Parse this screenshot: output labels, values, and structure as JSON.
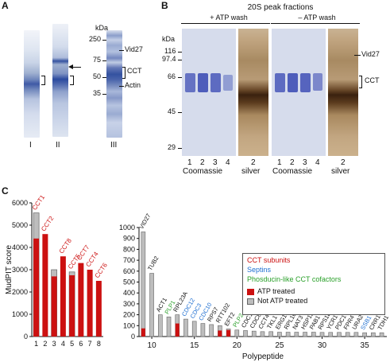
{
  "panel_a": {
    "label": "A",
    "kda_title": "kDa",
    "markers": [
      "250",
      "75",
      "50",
      "35"
    ],
    "lane_labels": [
      "I",
      "II",
      "III"
    ],
    "annotations": {
      "vid27": "Vid27",
      "cct": "CCT",
      "actin": "Actin"
    }
  },
  "panel_b": {
    "label": "B",
    "title": "20S peak fractions",
    "kda_title": "kDa",
    "markers": [
      "116",
      "97.4",
      "66",
      "45",
      "29"
    ],
    "groups": [
      {
        "title": "+ ATP wash",
        "lanes": [
          "1",
          "2",
          "3",
          "4"
        ],
        "stain": "Coomassie",
        "silver_lane": "2",
        "silver_label": "silver"
      },
      {
        "title": "– ATP wash",
        "lanes": [
          "1",
          "2",
          "3",
          "4"
        ],
        "stain": "Coomassie",
        "silver_lane": "2",
        "silver_label": "silver"
      }
    ],
    "annotations": {
      "vid27": "Vid27",
      "cct": "CCT"
    }
  },
  "panel_c": {
    "label": "C"
  },
  "legend": {
    "categories": [
      {
        "text": "CCT subunits",
        "color": "#cc1111"
      },
      {
        "text": "Septins",
        "color": "#1f6fd1"
      },
      {
        "text": "Phosducin-like CCT cofactors",
        "color": "#2aa02a"
      }
    ],
    "series": [
      {
        "text": "ATP treated"
      },
      {
        "text": "Not ATP treated"
      }
    ]
  },
  "chart_data": [
    {
      "type": "bar",
      "ylabel": "MudPIT score",
      "xlabel": "",
      "ylim": [
        0,
        6000
      ],
      "yticks": [
        0,
        1000,
        2000,
        3000,
        4000,
        5000,
        6000
      ],
      "categories": [
        "1",
        "2",
        "3",
        "4",
        "5",
        "6",
        "7",
        "8"
      ],
      "point_labels": [
        "CCT1",
        "CCT2",
        "",
        "CCT8",
        "CCT5",
        "CCT7",
        "CCT4",
        "CCT6"
      ],
      "series": [
        {
          "name": "ATP treated",
          "values": [
            4400,
            4600,
            2700,
            3600,
            2750,
            3300,
            3000,
            2500
          ]
        },
        {
          "name": "Not ATP treated",
          "values": [
            5550,
            0,
            3000,
            0,
            2900,
            0,
            0,
            0
          ]
        }
      ]
    },
    {
      "type": "bar",
      "ylabel": "",
      "xlabel": "Polypeptide",
      "ylim": [
        0,
        1000
      ],
      "yticks": [
        0,
        100,
        200,
        300,
        400,
        500,
        600,
        700,
        800,
        900,
        1000
      ],
      "xticks": [
        10,
        15,
        20,
        25,
        30,
        35
      ],
      "x": [
        9,
        10,
        11,
        12,
        13,
        14,
        15,
        16,
        17,
        18,
        19,
        20,
        21,
        22,
        23,
        24,
        25,
        26,
        27,
        28,
        29,
        30,
        31,
        32,
        33,
        34,
        35,
        36,
        37
      ],
      "point_labels": [
        "VID27",
        "TUB2",
        "ACT1",
        "PLP1",
        "RPL23A",
        "CDC12",
        "CDC3",
        "CDC10",
        "RPS7",
        "RTT102",
        "EFT2",
        "PLP2",
        "CDC11",
        "CDC8",
        "CCT4",
        "TKL1",
        "ERG13",
        "RPL10",
        "NAT3",
        "HSP12",
        "PAB1",
        "RPS1B",
        "YCR1",
        "PDC1",
        "FPR4",
        "URA2",
        "SSB1",
        "CRR1",
        "TDH1"
      ],
      "label_colors": [
        "#111",
        "#111",
        "#111",
        "#2aa02a",
        "#111",
        "#1f6fd1",
        "#1f6fd1",
        "#1f6fd1",
        "#111",
        "#111",
        "#111",
        "#2aa02a",
        "#111",
        "#111",
        "#111",
        "#111",
        "#111",
        "#111",
        "#111",
        "#111",
        "#111",
        "#111",
        "#111",
        "#111",
        "#111",
        "#111",
        "#1f6fd1",
        "#111",
        "#111"
      ],
      "series": [
        {
          "name": "ATP treated",
          "values": [
            75,
            0,
            0,
            0,
            120,
            0,
            0,
            0,
            0,
            55,
            60,
            0,
            0,
            0,
            0,
            0,
            0,
            0,
            0,
            0,
            0,
            0,
            0,
            0,
            0,
            0,
            0,
            0,
            0
          ]
        },
        {
          "name": "Not ATP treated",
          "values": [
            960,
            580,
            200,
            180,
            200,
            160,
            140,
            120,
            110,
            100,
            70,
            60,
            55,
            50,
            45,
            45,
            40,
            40,
            40,
            40,
            40,
            38,
            38,
            38,
            38,
            38,
            35,
            35,
            35
          ]
        }
      ]
    }
  ]
}
